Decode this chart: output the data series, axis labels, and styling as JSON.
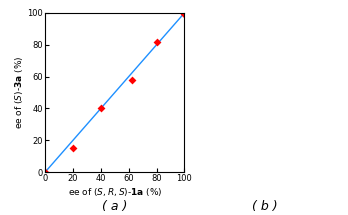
{
  "x_data": [
    0,
    20,
    40,
    62,
    80,
    100
  ],
  "y_data": [
    0,
    15,
    40,
    58,
    82,
    99
  ],
  "line_x": [
    0,
    100
  ],
  "line_y": [
    0,
    100
  ],
  "line_color": "#1E90FF",
  "marker_color": "#FF0000",
  "marker_style": "D",
  "marker_size": 4,
  "xlabel": "ee of (S,R,S)- 1a (%)",
  "ylabel": "ee of (S)-3a (%)",
  "xlim": [
    0,
    100
  ],
  "ylim": [
    0,
    100
  ],
  "xticks": [
    0,
    20,
    40,
    60,
    80,
    100
  ],
  "yticks": [
    0,
    20,
    40,
    60,
    80,
    100
  ],
  "xlabel_fontsize": 6.5,
  "ylabel_fontsize": 6.5,
  "tick_fontsize": 6.0,
  "label_a": "( a )",
  "label_b": "( b )",
  "label_fontsize": 9
}
